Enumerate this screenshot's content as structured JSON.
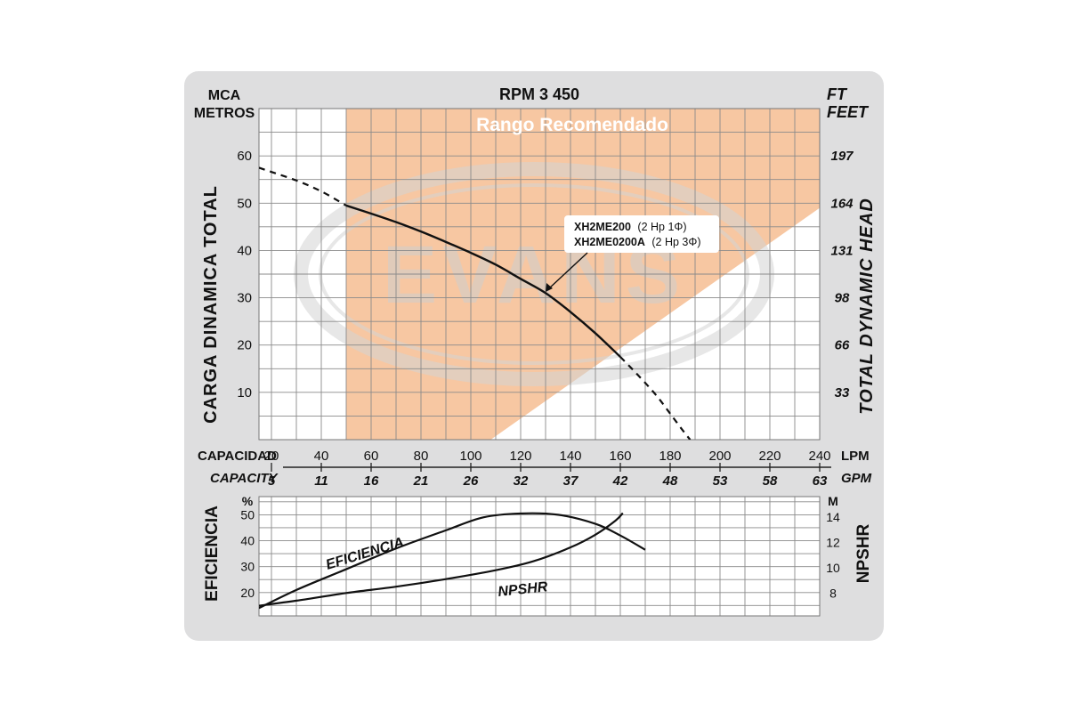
{
  "colors": {
    "card_background": "#dededf",
    "plot_background": "#ffffff",
    "recommended_range": "#f7c7a2",
    "grid": "#8a8a8a",
    "curve": "#111111",
    "watermark": "#d9d9d9"
  },
  "watermark_text": "EVANS",
  "chart_data": [
    {
      "type": "line",
      "title": "RPM 3 450",
      "left_axis": {
        "unit_top": "MCA",
        "unit_bottom": "METROS",
        "label": "CARGA DINAMICA TOTAL",
        "ticks": [
          10,
          20,
          30,
          40,
          50,
          60
        ],
        "range": [
          0,
          70
        ]
      },
      "right_axis": {
        "unit_top": "FT",
        "unit_bottom": "FEET",
        "label": "TOTAL DYNAMIC HEAD",
        "ticks": [
          "33",
          "66",
          "98",
          "131",
          "164",
          "197"
        ]
      },
      "x_axis_lpm": {
        "label": "CAPACIDAD",
        "unit": "LPM",
        "ticks": [
          20,
          40,
          60,
          80,
          100,
          120,
          140,
          160,
          180,
          200,
          220,
          240
        ],
        "range": [
          15,
          240
        ]
      },
      "x_axis_gpm": {
        "label": "CAPACITY",
        "unit": "GPM",
        "ticks": [
          "5",
          "11",
          "16",
          "21",
          "26",
          "32",
          "37",
          "42",
          "48",
          "53",
          "58",
          "63"
        ]
      },
      "recommended_range": {
        "label": "Rango Recomendado",
        "lpm_from": 50,
        "lpm_to": 240
      },
      "series": [
        {
          "name": "XH2ME200 (2 Hp 1Φ) / XH2ME0200A (2 Hp 3Φ)",
          "labels": [
            {
              "model": "XH2ME200",
              "spec": "(2 Hp  1Φ)"
            },
            {
              "model": "XH2ME0200A",
              "spec": "(2 Hp  3Φ)"
            }
          ],
          "solid": {
            "x": [
              50,
              60,
              70,
              80,
              90,
              100,
              110,
              120,
              130,
              140,
              150,
              160
            ],
            "y": [
              49.5,
              47.8,
              46,
              44,
              41.8,
              39.5,
              37,
              34,
              31,
              27,
              22.5,
              17.5
            ]
          },
          "dashed_start": {
            "x": [
              15,
              20,
              30,
              40,
              50
            ],
            "y": [
              57.5,
              56.6,
              54.8,
              52.5,
              49.5
            ]
          },
          "dashed_end": {
            "x": [
              160,
              165,
              170,
              175,
              180,
              185,
              188
            ],
            "y": [
              17.5,
              14.8,
              12,
              9,
              5.5,
              2,
              0
            ]
          }
        }
      ]
    },
    {
      "type": "line",
      "left_axis": {
        "unit": "%",
        "label": "EFICIENCIA",
        "ticks": [
          20,
          30,
          40,
          50
        ],
        "range": [
          11,
          57
        ]
      },
      "right_axis": {
        "unit": "M",
        "label": "NPSHR",
        "ticks": [
          "8",
          "10",
          "12",
          "14"
        ],
        "range": [
          6.2,
          15.6
        ]
      },
      "series": [
        {
          "name": "EFICIENCIA",
          "axis": "left",
          "x": [
            15,
            30,
            50,
            70,
            90,
            105,
            120,
            135,
            150,
            160,
            170
          ],
          "y": [
            14,
            21,
            29,
            37,
            44,
            49,
            50.5,
            50,
            46.5,
            42,
            36.5
          ]
        },
        {
          "name": "NPSHR",
          "axis": "right",
          "x": [
            15,
            30,
            50,
            70,
            90,
            110,
            125,
            140,
            150,
            158,
            161
          ],
          "y": [
            7,
            7.4,
            8,
            8.5,
            9.1,
            9.8,
            10.5,
            11.6,
            12.6,
            13.7,
            14.3
          ]
        }
      ]
    }
  ]
}
